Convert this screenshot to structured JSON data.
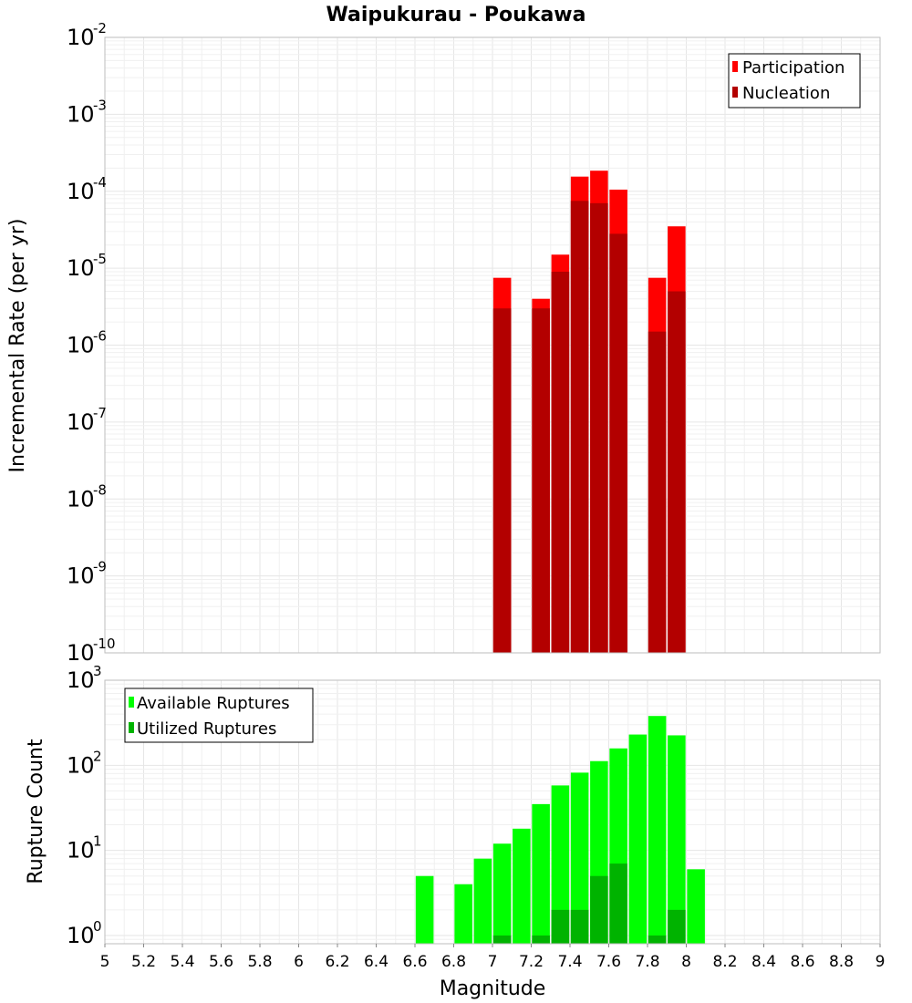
{
  "chart_data": [
    {
      "type": "bar",
      "title": "Waipukurau - Poukawa",
      "xlabel": "",
      "ylabel": "Incremental Rate (per yr)",
      "yscale": "log",
      "ylim": [
        1e-10,
        0.01
      ],
      "xlim": [
        5,
        9
      ],
      "legend_position": "top-right",
      "legend": [
        "Participation",
        "Nucleation"
      ],
      "colors": {
        "Participation": "#ff0000",
        "Nucleation": "#b30000"
      },
      "ytick_bases": [
        "10",
        "10",
        "10",
        "10",
        "10",
        "10",
        "10",
        "10",
        "10"
      ],
      "ytick_exponents": [
        "-10",
        "-9",
        "-8",
        "-7",
        "-6",
        "-5",
        "-4",
        "-3",
        "-2"
      ],
      "x": [
        7.05,
        7.25,
        7.35,
        7.45,
        7.55,
        7.65,
        7.85,
        7.95
      ],
      "series": [
        {
          "name": "Participation",
          "values": [
            7.5e-06,
            4e-06,
            1.5e-05,
            0.000155,
            0.000185,
            0.000105,
            7.5e-06,
            3.5e-05
          ]
        },
        {
          "name": "Nucleation",
          "values": [
            3e-06,
            3e-06,
            9e-06,
            7.5e-05,
            7e-05,
            2.8e-05,
            1.5e-06,
            5e-06
          ]
        }
      ]
    },
    {
      "type": "bar",
      "title": "",
      "xlabel": "Magnitude",
      "ylabel": "Rupture Count",
      "yscale": "log",
      "ylim": [
        0.8,
        1000
      ],
      "xlim": [
        5,
        9
      ],
      "legend_position": "top-left",
      "legend": [
        "Available Ruptures",
        "Utilized Ruptures"
      ],
      "colors": {
        "Available Ruptures": "#00ff00",
        "Utilized Ruptures": "#00b300"
      },
      "ytick_bases": [
        "10",
        "10",
        "10",
        "10"
      ],
      "ytick_exponents": [
        "0",
        "1",
        "2",
        "3"
      ],
      "xtick_labels": [
        "5",
        "5.2",
        "5.4",
        "5.6",
        "5.8",
        "6",
        "6.2",
        "6.4",
        "6.6",
        "6.8",
        "7",
        "7.2",
        "7.4",
        "7.6",
        "7.8",
        "8",
        "8.2",
        "8.4",
        "8.6",
        "8.8",
        "9"
      ],
      "x": [
        6.65,
        6.85,
        6.95,
        7.05,
        7.15,
        7.25,
        7.35,
        7.45,
        7.55,
        7.65,
        7.75,
        7.85,
        7.95,
        8.05
      ],
      "series": [
        {
          "name": "Available Ruptures",
          "values": [
            5,
            4,
            8,
            12,
            18,
            35,
            58,
            82,
            112,
            158,
            230,
            380,
            225,
            6
          ]
        },
        {
          "name": "Utilized Ruptures",
          "values": [
            0,
            0,
            0,
            1,
            0,
            1,
            2,
            2,
            5,
            7,
            0,
            1,
            2,
            0
          ]
        }
      ]
    }
  ]
}
